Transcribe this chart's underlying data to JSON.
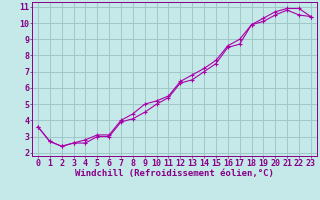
{
  "xlabel": "Windchill (Refroidissement éolien,°C)",
  "bg_color": "#c5e8e8",
  "line_color": "#aa00aa",
  "grid_color": "#a0c8c8",
  "axis_color": "#880088",
  "xlim": [
    -0.5,
    23.5
  ],
  "ylim": [
    1.8,
    11.3
  ],
  "xticks": [
    0,
    1,
    2,
    3,
    4,
    5,
    6,
    7,
    8,
    9,
    10,
    11,
    12,
    13,
    14,
    15,
    16,
    17,
    18,
    19,
    20,
    21,
    22,
    23
  ],
  "yticks": [
    2,
    3,
    4,
    5,
    6,
    7,
    8,
    9,
    10,
    11
  ],
  "line1_x": [
    0,
    1,
    2,
    3,
    4,
    5,
    6,
    7,
    8,
    9,
    10,
    11,
    12,
    13,
    14,
    15,
    16,
    17,
    18,
    19,
    20,
    21,
    22,
    23
  ],
  "line1_y": [
    3.6,
    2.7,
    2.4,
    2.6,
    2.6,
    3.0,
    3.0,
    3.9,
    4.1,
    4.5,
    5.0,
    5.4,
    6.3,
    6.5,
    7.0,
    7.5,
    8.5,
    8.7,
    9.9,
    10.3,
    10.7,
    10.9,
    10.9,
    10.4
  ],
  "line2_x": [
    0,
    1,
    2,
    3,
    4,
    5,
    6,
    7,
    8,
    9,
    10,
    11,
    12,
    13,
    14,
    15,
    16,
    17,
    18,
    19,
    20,
    21,
    22,
    23
  ],
  "line2_y": [
    3.6,
    2.7,
    2.4,
    2.6,
    2.8,
    3.1,
    3.1,
    4.0,
    4.4,
    5.0,
    5.2,
    5.5,
    6.4,
    6.8,
    7.2,
    7.7,
    8.6,
    9.0,
    9.9,
    10.1,
    10.5,
    10.8,
    10.5,
    10.4
  ],
  "xlabel_fontsize": 6.5,
  "tick_fontsize": 6.0
}
